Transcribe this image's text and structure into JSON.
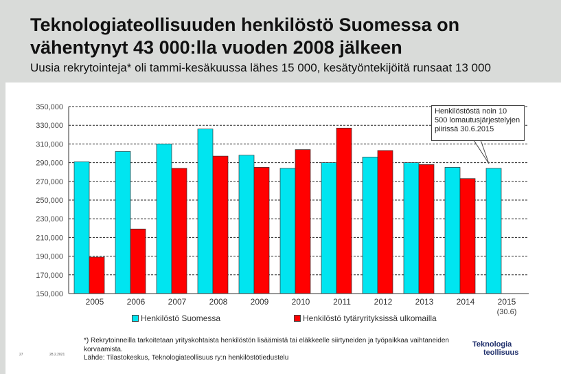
{
  "title": "Teknologiateollisuuden henkilöstö Suomessa on vähentynyt 43 000:lla vuoden 2008 jälkeen",
  "subtitle": "Uusia rekrytointeja* oli tammi-kesäkuussa lähes 15 000, kesätyöntekijöitä runsaat 13 000",
  "callout": "Henkilöstöstä noin 10 500 lomautusjärjestelyjen piirissä 30.6.2015",
  "footnote": {
    "line1": "*) Rekrytoinneilla tarkoitetaan yrityskohtaista henkilöstön lisäämistä tai eläkkeelle siirtyneiden ja työpaikkaa vaihtaneiden korvaamista.",
    "line2": "Lähde: Tilastokeskus, Teknologiateollisuus ry:n henkilöstötiedustelu"
  },
  "page_number": "27",
  "page_date": "28.2.2021",
  "logo": {
    "line1": "Teknologia",
    "line2": "teollisuus"
  },
  "chart_data": {
    "type": "bar",
    "categories": [
      "2005",
      "2006",
      "2007",
      "2008",
      "2009",
      "2010",
      "2011",
      "2012",
      "2013",
      "2014",
      "2015"
    ],
    "category_sublabels": {
      "2015": "(30.6)"
    },
    "series": [
      {
        "name": "Henkilöstö Suomessa",
        "color": "#00e5f0",
        "values": [
          291000,
          302000,
          310000,
          326000,
          298000,
          284000,
          290000,
          296000,
          290000,
          285000,
          284000
        ]
      },
      {
        "name": "Henkilöstö tytäryrityksissä ulkomailla",
        "color": "#ff0000",
        "values": [
          189000,
          219000,
          284000,
          297000,
          285000,
          304000,
          327000,
          303000,
          288000,
          273000,
          null
        ]
      }
    ],
    "ylim": [
      150000,
      350000
    ],
    "yticks": [
      "150,000",
      "170,000",
      "190,000",
      "210,000",
      "230,000",
      "250,000",
      "270,000",
      "290,000",
      "310,000",
      "330,000",
      "350,000"
    ],
    "grid": true,
    "legend": "bottom"
  }
}
